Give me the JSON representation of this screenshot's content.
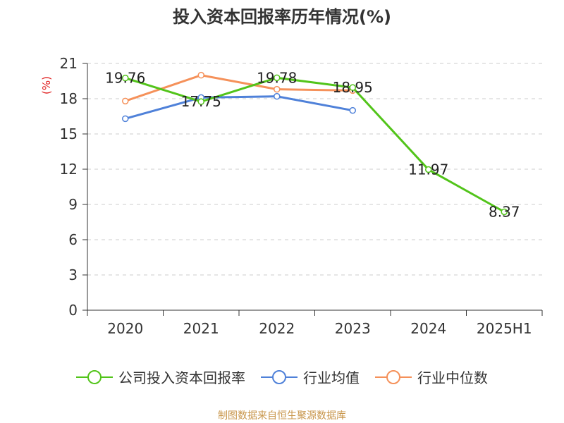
{
  "title": "投入资本回报率历年情况(%)",
  "source": "制图数据来自恒生聚源数据库",
  "chart_data": {
    "type": "line",
    "title": "投入资本回报率历年情况(%)",
    "ylabel": "(%)",
    "xlabel": "",
    "categories": [
      "2020",
      "2021",
      "2022",
      "2023",
      "2024",
      "2025H1"
    ],
    "ylim": [
      0,
      21
    ],
    "yticks": [
      0,
      3,
      6,
      9,
      12,
      15,
      18,
      21
    ],
    "grid": true,
    "legend_position": "bottom",
    "series": [
      {
        "name": "公司投入资本回报率",
        "color": "#52c41a",
        "values": [
          19.76,
          17.75,
          19.78,
          18.95,
          11.97,
          8.37
        ],
        "labels": [
          "19.76",
          "17.75",
          "19.78",
          "18.95",
          "11.97",
          "8.37"
        ]
      },
      {
        "name": "行业均值",
        "color": "#4f81d9",
        "values": [
          16.3,
          18.1,
          18.2,
          17.0,
          null,
          null
        ]
      },
      {
        "name": "行业中位数",
        "color": "#f5915a",
        "values": [
          17.8,
          20.0,
          18.8,
          18.7,
          null,
          null
        ]
      }
    ]
  }
}
